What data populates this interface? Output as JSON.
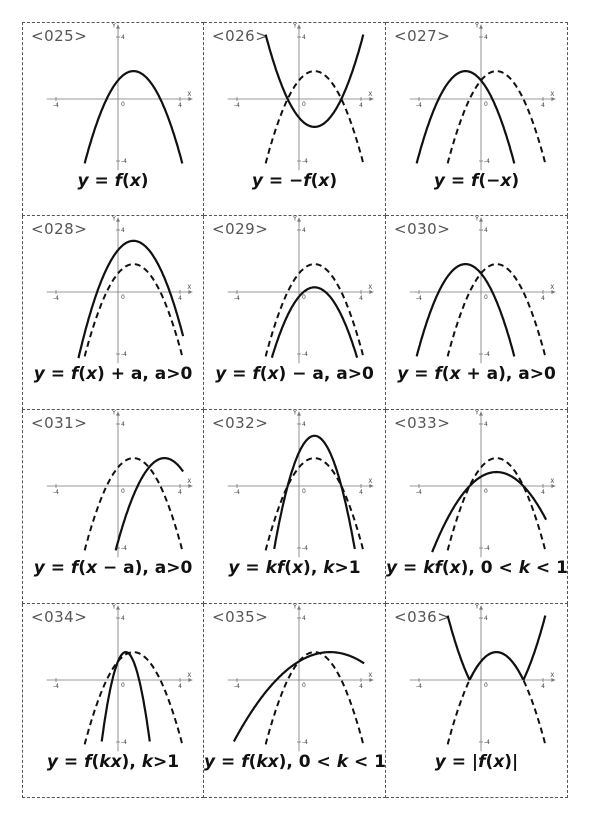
{
  "axis": {
    "x_label": "X",
    "y_label": "Y",
    "x_min": "-4",
    "x_max": "4",
    "y_max": "4",
    "y_min": "-4",
    "origin": "0"
  },
  "line_styles": {
    "solid": "transformed",
    "dashed": "base"
  },
  "cards": [
    {
      "id": "<025>",
      "formula_html": "<i>y</i> = <i>f</i>(<i>x</i>)",
      "transform": "identity"
    },
    {
      "id": "<026>",
      "formula_html": "<i>y</i> = −<i>f</i>(<i>x</i>)",
      "transform": "negate"
    },
    {
      "id": "<027>",
      "formula_html": "<i>y</i> = <i>f</i>(−<i>x</i>)",
      "transform": "mirror_x"
    },
    {
      "id": "<028>",
      "formula_html": "<i>y</i> = <i>f</i>(<i>x</i>) + a, a>0",
      "transform": "shift_up"
    },
    {
      "id": "<029>",
      "formula_html": "<i>y</i> = <i>f</i>(<i>x</i>) − a, a>0",
      "transform": "shift_down"
    },
    {
      "id": "<030>",
      "formula_html": "<i>y</i> = <i>f</i>(<i>x</i> + a), a>0",
      "transform": "shift_left"
    },
    {
      "id": "<031>",
      "formula_html": "<i>y</i> = <i>f</i>(<i>x</i> − a), a>0",
      "transform": "shift_right"
    },
    {
      "id": "<032>",
      "formula_html": "<i>y</i> = <i>kf</i>(<i>x</i>), <i>k</i>>1",
      "transform": "stretch_y"
    },
    {
      "id": "<033>",
      "formula_html": "<i>y</i> = <i>kf</i>(<i>x</i>), 0 < <i>k</i> < 1",
      "transform": "shrink_y"
    },
    {
      "id": "<034>",
      "formula_html": "<i>y</i> = <i>f</i>(<i>kx</i>), <i>k</i>>1",
      "transform": "compress_x"
    },
    {
      "id": "<035>",
      "formula_html": "<i>y</i> = <i>f</i>(<i>kx</i>), 0 < <i>k</i> < 1",
      "transform": "stretch_x"
    },
    {
      "id": "<036>",
      "formula_html": "<i>y</i> = |<i>f</i>(<i>x</i>)|",
      "transform": "abs"
    }
  ]
}
